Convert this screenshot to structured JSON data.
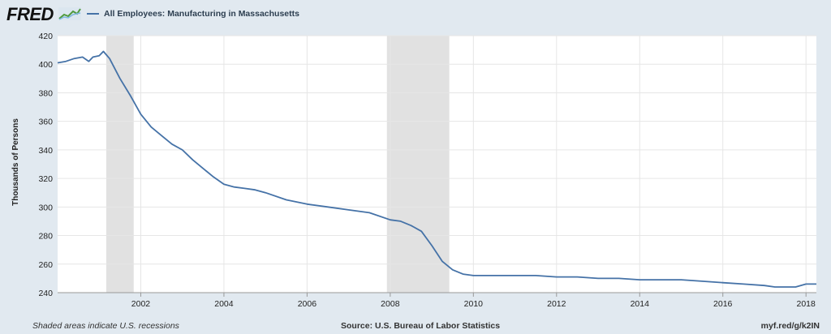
{
  "header": {
    "logo_text": "FRED",
    "legend_label": "All Employees: Manufacturing in Massachusetts"
  },
  "footer": {
    "recession_note": "Shaded areas indicate U.S. recessions",
    "source": "Source: U.S. Bureau of Labor Statistics",
    "short_url": "myf.red/g/k2IN"
  },
  "colors": {
    "background": "#e1e9f0",
    "plot_background": "#ffffff",
    "series": "#4572a7",
    "recession": "#e1e1e1",
    "grid": "#e6e6e6"
  },
  "chart_data": {
    "type": "line",
    "ylabel": "Thousands of Persons",
    "xlabel": "",
    "ylim": [
      240,
      420
    ],
    "xlim": [
      2000.0,
      2018.25
    ],
    "yticks": [
      240,
      260,
      280,
      300,
      320,
      340,
      360,
      380,
      400,
      420
    ],
    "xticks": [
      "2002",
      "2004",
      "2006",
      "2008",
      "2010",
      "2012",
      "2014",
      "2016",
      "2018"
    ],
    "grid": true,
    "recessions": [
      [
        2001.17,
        2001.83
      ],
      [
        2007.92,
        2009.42
      ]
    ],
    "series": [
      {
        "name": "All Employees: Manufacturing in Massachusetts",
        "x": [
          2000.0,
          2000.2,
          2000.4,
          2000.6,
          2000.75,
          2000.85,
          2001.0,
          2001.1,
          2001.25,
          2001.5,
          2001.75,
          2002.0,
          2002.25,
          2002.5,
          2002.75,
          2003.0,
          2003.25,
          2003.5,
          2003.75,
          2004.0,
          2004.25,
          2004.5,
          2004.75,
          2005.0,
          2005.5,
          2006.0,
          2006.5,
          2007.0,
          2007.5,
          2008.0,
          2008.25,
          2008.5,
          2008.75,
          2009.0,
          2009.25,
          2009.5,
          2009.75,
          2010.0,
          2010.5,
          2011.0,
          2011.5,
          2012.0,
          2012.5,
          2013.0,
          2013.5,
          2014.0,
          2014.5,
          2015.0,
          2015.5,
          2016.0,
          2016.5,
          2017.0,
          2017.25,
          2017.5,
          2017.75,
          2018.0,
          2018.25
        ],
        "values": [
          401,
          402,
          404,
          405,
          402,
          405,
          406,
          409,
          404,
          390,
          378,
          365,
          356,
          350,
          344,
          340,
          333,
          327,
          321,
          316,
          314,
          313,
          312,
          310,
          305,
          302,
          300,
          298,
          296,
          291,
          290,
          287,
          283,
          273,
          262,
          256,
          253,
          252,
          252,
          252,
          252,
          251,
          251,
          250,
          250,
          249,
          249,
          249,
          248,
          247,
          246,
          245,
          244,
          244,
          244,
          246,
          246
        ]
      }
    ]
  }
}
